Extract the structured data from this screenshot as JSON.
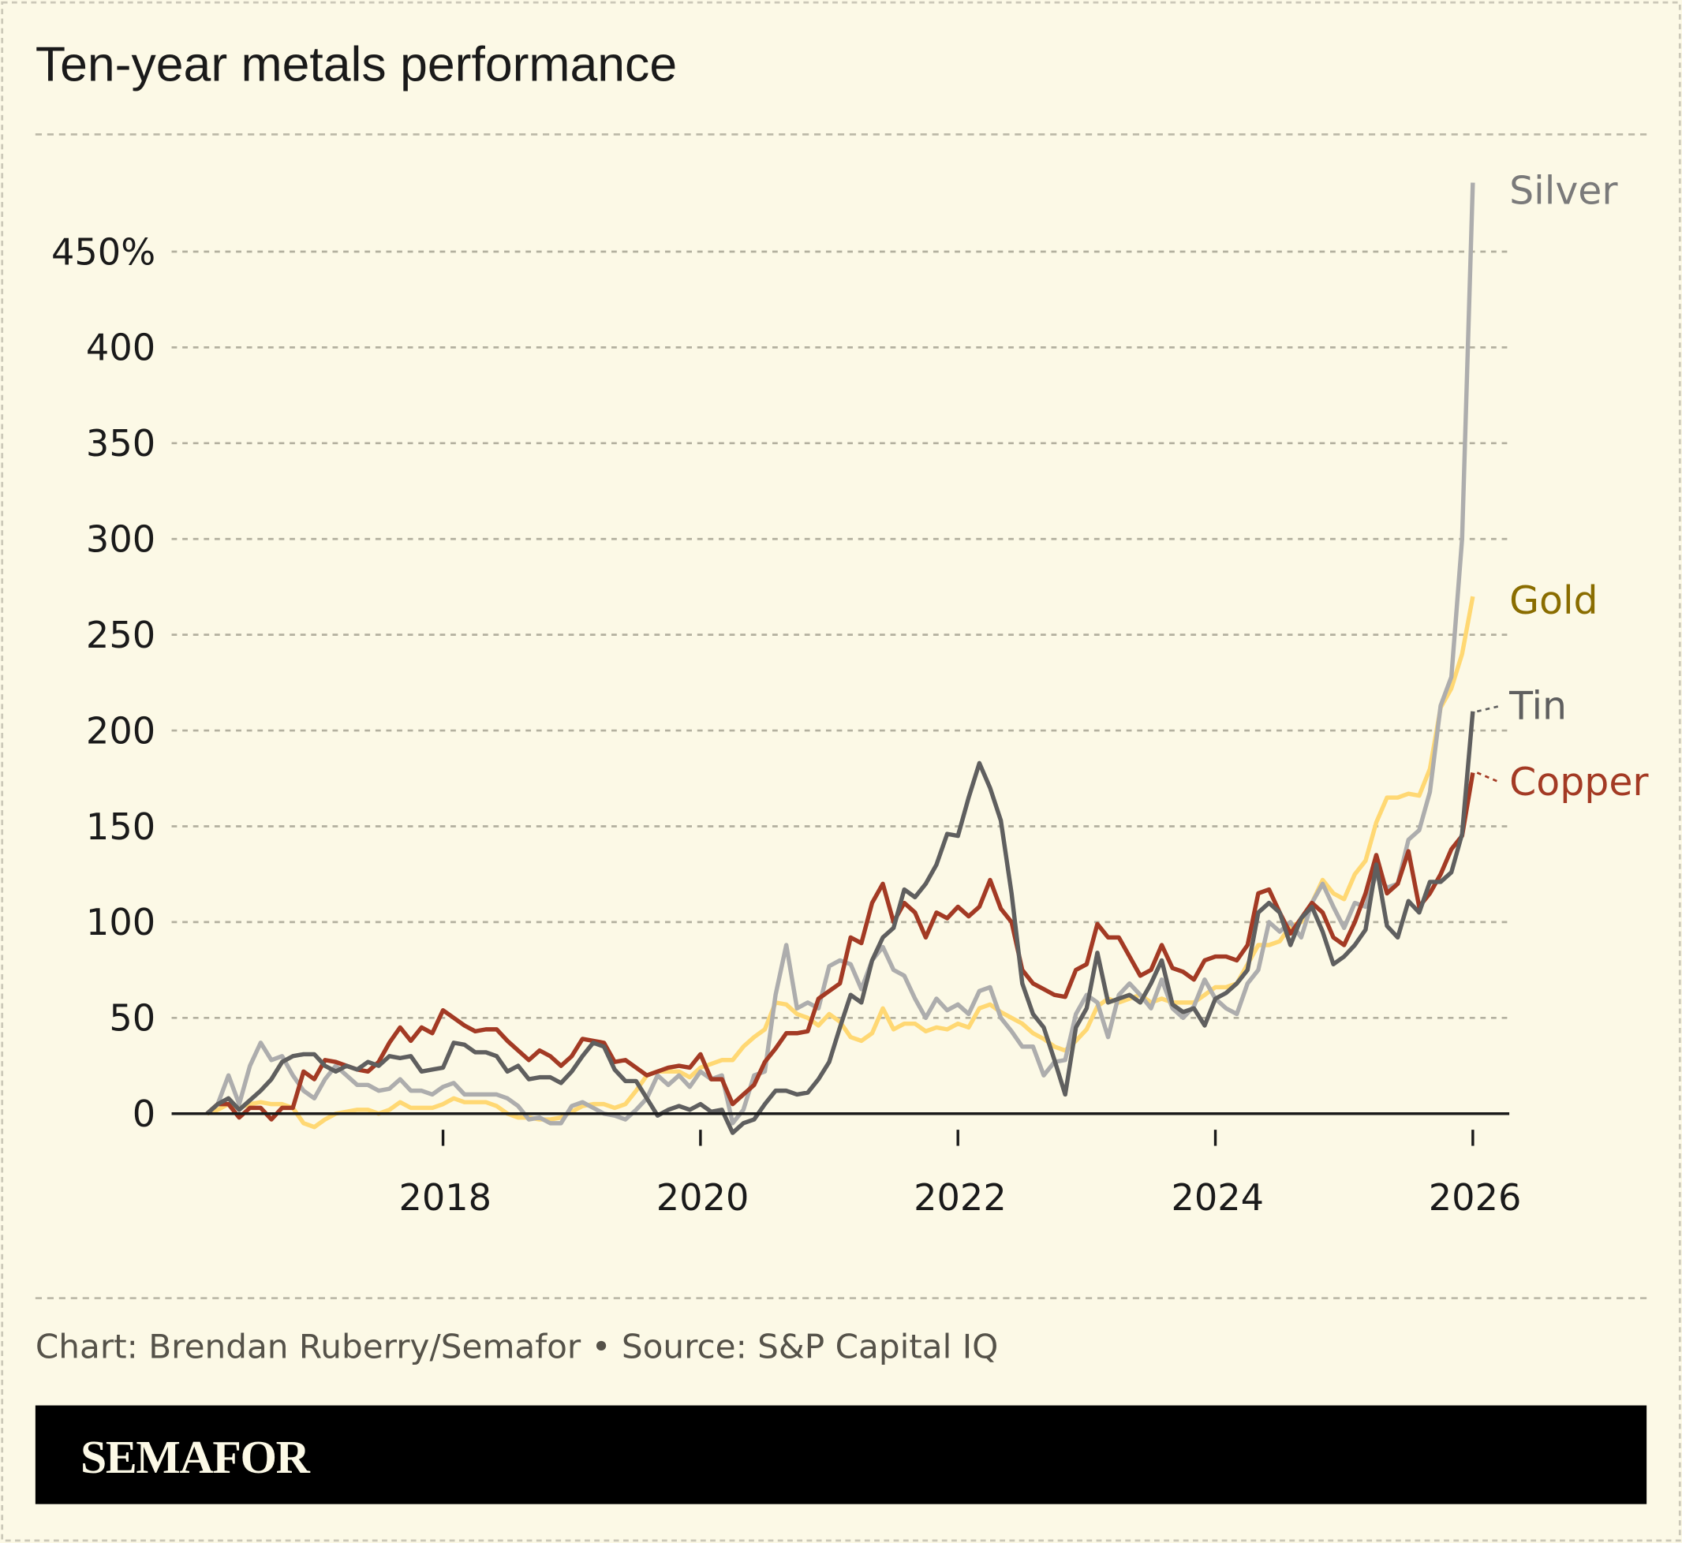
{
  "title": "Ten-year metals performance",
  "credit": "Chart: Brendan Ruberry/Semafor • Source: S&P Capital IQ",
  "logo": "SEMAFOR",
  "chart_data": {
    "type": "line",
    "title": "Ten-year metals performance",
    "xlabel": "",
    "ylabel": "",
    "yunit": "%",
    "ylim": [
      0,
      450
    ],
    "yticks": [
      0,
      50,
      100,
      150,
      200,
      250,
      300,
      350,
      400,
      450
    ],
    "ytick_labels": [
      "0",
      "50",
      "100",
      "150",
      "200",
      "250",
      "300",
      "350",
      "400",
      "450%"
    ],
    "xticks": [
      "2018",
      "2020",
      "2022",
      "2024",
      "2026"
    ],
    "grid": "horizontal dashed",
    "legend": "direct labels at right end of lines",
    "dates": [
      "2016-03",
      "2016-04",
      "2016-05",
      "2016-06",
      "2016-07",
      "2016-08",
      "2016-09",
      "2016-10",
      "2016-11",
      "2016-12",
      "2017-01",
      "2017-02",
      "2017-03",
      "2017-04",
      "2017-05",
      "2017-06",
      "2017-07",
      "2017-08",
      "2017-09",
      "2017-10",
      "2017-11",
      "2017-12",
      "2018-01",
      "2018-02",
      "2018-03",
      "2018-04",
      "2018-05",
      "2018-06",
      "2018-07",
      "2018-08",
      "2018-09",
      "2018-10",
      "2018-11",
      "2018-12",
      "2019-01",
      "2019-02",
      "2019-03",
      "2019-04",
      "2019-05",
      "2019-06",
      "2019-07",
      "2019-08",
      "2019-09",
      "2019-10",
      "2019-11",
      "2019-12",
      "2020-01",
      "2020-02",
      "2020-03",
      "2020-04",
      "2020-05",
      "2020-06",
      "2020-07",
      "2020-08",
      "2020-09",
      "2020-10",
      "2020-11",
      "2020-12",
      "2021-01",
      "2021-02",
      "2021-03",
      "2021-04",
      "2021-05",
      "2021-06",
      "2021-07",
      "2021-08",
      "2021-09",
      "2021-10",
      "2021-11",
      "2021-12",
      "2022-01",
      "2022-02",
      "2022-03",
      "2022-04",
      "2022-05",
      "2022-06",
      "2022-07",
      "2022-08",
      "2022-09",
      "2022-10",
      "2022-11",
      "2022-12",
      "2023-01",
      "2023-02",
      "2023-03",
      "2023-04",
      "2023-05",
      "2023-06",
      "2023-07",
      "2023-08",
      "2023-09",
      "2023-10",
      "2023-11",
      "2023-12",
      "2024-01",
      "2024-02",
      "2024-03",
      "2024-04",
      "2024-05",
      "2024-06",
      "2024-07",
      "2024-08",
      "2024-09",
      "2024-10",
      "2024-11",
      "2024-12",
      "2025-01",
      "2025-02",
      "2025-03",
      "2025-04",
      "2025-05",
      "2025-06",
      "2025-07",
      "2025-08",
      "2025-09",
      "2025-10",
      "2025-11",
      "2025-12",
      "2026-01"
    ],
    "series": [
      {
        "name": "Gold",
        "color": "#ffd873",
        "label_color": "#8a6d00",
        "values": [
          0,
          2,
          5,
          3,
          5,
          6,
          5,
          5,
          3,
          -5,
          -7,
          -3,
          0,
          1,
          2,
          2,
          0,
          2,
          6,
          3,
          3,
          3,
          5,
          8,
          6,
          6,
          6,
          4,
          0,
          -2,
          -2,
          -3,
          -3,
          -2,
          1,
          4,
          5,
          5,
          3,
          5,
          12,
          20,
          22,
          22,
          22,
          19,
          24,
          26,
          28,
          28,
          35,
          40,
          44,
          58,
          57,
          52,
          50,
          46,
          52,
          48,
          40,
          38,
          42,
          55,
          44,
          47,
          47,
          43,
          45,
          44,
          47,
          45,
          55,
          57,
          53,
          50,
          47,
          42,
          39,
          35,
          33,
          38,
          44,
          56,
          60,
          58,
          60,
          62,
          58,
          60,
          58,
          58,
          58,
          62,
          66,
          66,
          68,
          78,
          88,
          88,
          90,
          98,
          100,
          110,
          122,
          115,
          112,
          125,
          132,
          152,
          165,
          165,
          167,
          166,
          180,
          212,
          222,
          240,
          270
        ]
      },
      {
        "name": "Silver",
        "color": "#adadad",
        "label_color": "#7a7a7a",
        "values": [
          0,
          5,
          20,
          5,
          25,
          37,
          28,
          30,
          20,
          12,
          8,
          18,
          25,
          20,
          15,
          15,
          12,
          13,
          18,
          12,
          12,
          10,
          14,
          16,
          10,
          10,
          10,
          10,
          8,
          4,
          -3,
          -2,
          -5,
          -5,
          4,
          6,
          3,
          0,
          -1,
          -3,
          2,
          8,
          20,
          15,
          20,
          14,
          22,
          18,
          20,
          -5,
          2,
          20,
          22,
          62,
          88,
          55,
          58,
          55,
          77,
          80,
          78,
          65,
          80,
          87,
          75,
          72,
          60,
          50,
          60,
          54,
          57,
          52,
          64,
          66,
          50,
          43,
          35,
          35,
          20,
          27,
          28,
          52,
          62,
          58,
          40,
          62,
          68,
          62,
          55,
          70,
          55,
          50,
          56,
          70,
          60,
          55,
          52,
          68,
          75,
          100,
          95,
          100,
          92,
          110,
          120,
          108,
          97,
          110,
          108,
          125,
          118,
          120,
          143,
          148,
          168,
          213,
          228,
          300,
          486
        ]
      },
      {
        "name": "Copper",
        "color": "#a33a24",
        "label_color": "#a33a24",
        "values": [
          0,
          5,
          5,
          -2,
          3,
          3,
          -3,
          3,
          3,
          22,
          18,
          28,
          27,
          25,
          23,
          22,
          27,
          37,
          45,
          38,
          45,
          42,
          54,
          50,
          46,
          43,
          44,
          44,
          38,
          33,
          28,
          33,
          30,
          25,
          30,
          39,
          38,
          37,
          27,
          28,
          24,
          20,
          22,
          24,
          25,
          24,
          31,
          18,
          18,
          5,
          10,
          15,
          27,
          34,
          42,
          42,
          43,
          60,
          64,
          68,
          92,
          89,
          110,
          120,
          100,
          110,
          105,
          92,
          105,
          102,
          108,
          103,
          108,
          122,
          107,
          100,
          75,
          68,
          65,
          62,
          61,
          75,
          78,
          99,
          92,
          92,
          82,
          72,
          75,
          88,
          76,
          74,
          70,
          80,
          82,
          82,
          80,
          88,
          115,
          117,
          105,
          94,
          102,
          110,
          105,
          92,
          88,
          100,
          115,
          135,
          115,
          120,
          137,
          108,
          115,
          125,
          138,
          145,
          178
        ]
      },
      {
        "name": "Tin",
        "color": "#5f5f5f",
        "label_color": "#5f5f5f",
        "values": [
          0,
          5,
          8,
          2,
          7,
          12,
          18,
          27,
          30,
          31,
          31,
          25,
          22,
          25,
          23,
          27,
          25,
          30,
          29,
          30,
          22,
          23,
          24,
          37,
          36,
          32,
          32,
          30,
          22,
          25,
          18,
          19,
          19,
          16,
          22,
          30,
          37,
          35,
          23,
          17,
          17,
          8,
          -1,
          2,
          4,
          2,
          5,
          1,
          2,
          -10,
          -5,
          -3,
          5,
          12,
          12,
          10,
          11,
          18,
          27,
          45,
          62,
          58,
          80,
          92,
          97,
          117,
          113,
          120,
          130,
          146,
          145,
          165,
          183,
          170,
          153,
          115,
          68,
          52,
          45,
          28,
          10,
          45,
          55,
          84,
          58,
          60,
          62,
          58,
          68,
          80,
          57,
          53,
          55,
          46,
          60,
          63,
          68,
          75,
          105,
          110,
          105,
          88,
          102,
          108,
          95,
          78,
          82,
          88,
          96,
          130,
          98,
          92,
          111,
          105,
          121,
          121,
          126,
          146,
          210
        ]
      }
    ]
  }
}
